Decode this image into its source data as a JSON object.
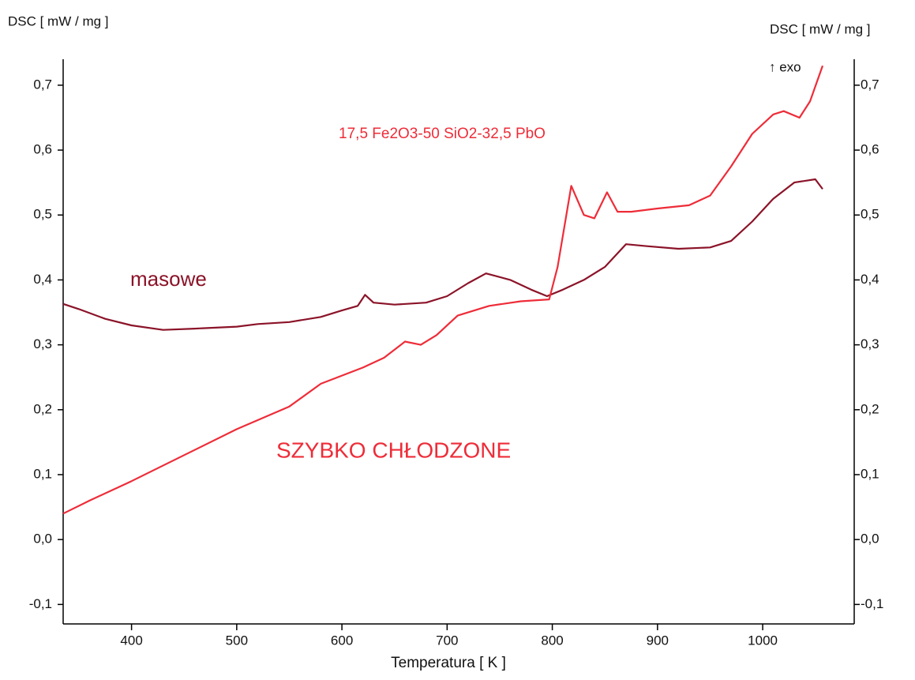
{
  "chart_data": {
    "type": "line",
    "title": "17,5 Fe2O3-50 SiO2-32,5 PbO",
    "y_label": "DSC [ mW / mg ]",
    "y2_label": "DSC [ mW / mg ]",
    "x_label": "Temperatura [ K ]",
    "annotation": "↑ exo",
    "xlim": [
      335,
      1087
    ],
    "xticks": [
      400,
      500,
      600,
      700,
      800,
      900,
      1000
    ],
    "ylim": [
      -0.13,
      0.74
    ],
    "yticks": [
      {
        "value": -0.1,
        "label": "-0,1"
      },
      {
        "value": 0,
        "label": "0,0"
      },
      {
        "value": 0.1,
        "label": "0,1"
      },
      {
        "value": 0.2,
        "label": "0,2"
      },
      {
        "value": 0.3,
        "label": "0,3"
      },
      {
        "value": 0.4,
        "label": "0,4"
      },
      {
        "value": 0.5,
        "label": "0,5"
      },
      {
        "value": 0.6,
        "label": "0,6"
      },
      {
        "value": 0.7,
        "label": "0,7"
      }
    ],
    "y2lim": [
      -0.13,
      0.74
    ],
    "y2ticks": [
      {
        "value": -0.1,
        "label": "-0,1"
      },
      {
        "value": 0,
        "label": "0,0"
      },
      {
        "value": 0.1,
        "label": "0,1"
      },
      {
        "value": 0.2,
        "label": "0,2"
      },
      {
        "value": 0.3,
        "label": "0,3"
      },
      {
        "value": 0.4,
        "label": "0,4"
      },
      {
        "value": 0.5,
        "label": "0,5"
      },
      {
        "value": 0.6,
        "label": "0,6"
      },
      {
        "value": 0.7,
        "label": "0,7"
      }
    ],
    "grid": false,
    "series": [
      {
        "name": "masowe",
        "color": "#8b1328",
        "x": [
          335,
          350,
          375,
          400,
          430,
          460,
          500,
          520,
          550,
          580,
          600,
          615,
          622,
          630,
          650,
          680,
          700,
          720,
          737,
          760,
          780,
          795,
          810,
          830,
          850,
          870,
          890,
          920,
          950,
          970,
          990,
          1010,
          1030,
          1050,
          1057
        ],
        "values": [
          0.363,
          0.355,
          0.34,
          0.33,
          0.323,
          0.325,
          0.328,
          0.332,
          0.335,
          0.343,
          0.353,
          0.36,
          0.377,
          0.365,
          0.362,
          0.365,
          0.375,
          0.395,
          0.41,
          0.4,
          0.385,
          0.375,
          0.385,
          0.4,
          0.42,
          0.455,
          0.452,
          0.448,
          0.45,
          0.46,
          0.49,
          0.525,
          0.55,
          0.555,
          0.54
        ]
      },
      {
        "name": "SZYBKO CHŁODZONE",
        "color": "#ee2c38",
        "x": [
          335,
          360,
          400,
          450,
          500,
          550,
          580,
          620,
          640,
          660,
          675,
          690,
          710,
          740,
          770,
          797,
          805,
          818,
          830,
          840,
          852,
          862,
          875,
          900,
          930,
          950,
          970,
          990,
          1010,
          1020,
          1035,
          1045,
          1057
        ],
        "values": [
          0.04,
          0.06,
          0.09,
          0.13,
          0.17,
          0.205,
          0.24,
          0.265,
          0.28,
          0.305,
          0.3,
          0.315,
          0.345,
          0.36,
          0.367,
          0.37,
          0.42,
          0.545,
          0.5,
          0.495,
          0.535,
          0.505,
          0.505,
          0.51,
          0.515,
          0.53,
          0.575,
          0.625,
          0.655,
          0.66,
          0.65,
          0.675,
          0.73
        ]
      }
    ]
  }
}
